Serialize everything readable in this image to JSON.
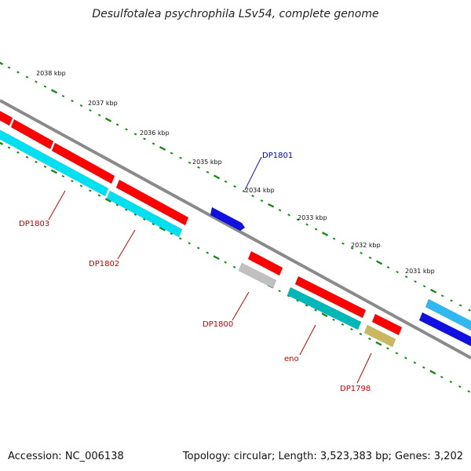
{
  "header": {
    "title": "Desulfotalea psychrophila LSv54, complete genome"
  },
  "footer": {
    "accession": "Accession: NC_006138",
    "summary": "Topology: circular; Length: 3,523,383 bp; Genes: 3,202"
  },
  "ticks": [
    "2038 kbp",
    "2037 kbp",
    "2036 kbp",
    "2035 kbp",
    "2034 kbp",
    "2033 kbp",
    "2032 kbp",
    "2031 kbp"
  ],
  "gene_labels": [
    {
      "label": "DP1801",
      "color": "#0000cc"
    },
    {
      "label": "DP1803",
      "color": "#cc0000"
    },
    {
      "label": "DP1802",
      "color": "#cc0000"
    },
    {
      "label": "DP1800",
      "color": "#cc0000"
    },
    {
      "label": "eno",
      "color": "#cc0000"
    },
    {
      "label": "DP1798",
      "color": "#cc0000"
    }
  ],
  "colors": {
    "backbone": "#8a8a8a",
    "tick_dots": "#1a8a1a",
    "cds_red": "#ff0000",
    "cds_blue": "#1010e0",
    "cds_cyan": "#00e0f0",
    "cds_teal": "#00b8b8",
    "cds_gray": "#c0c0c0",
    "cds_khaki": "#c8b860",
    "cds_lightblue": "#30b8f0"
  }
}
